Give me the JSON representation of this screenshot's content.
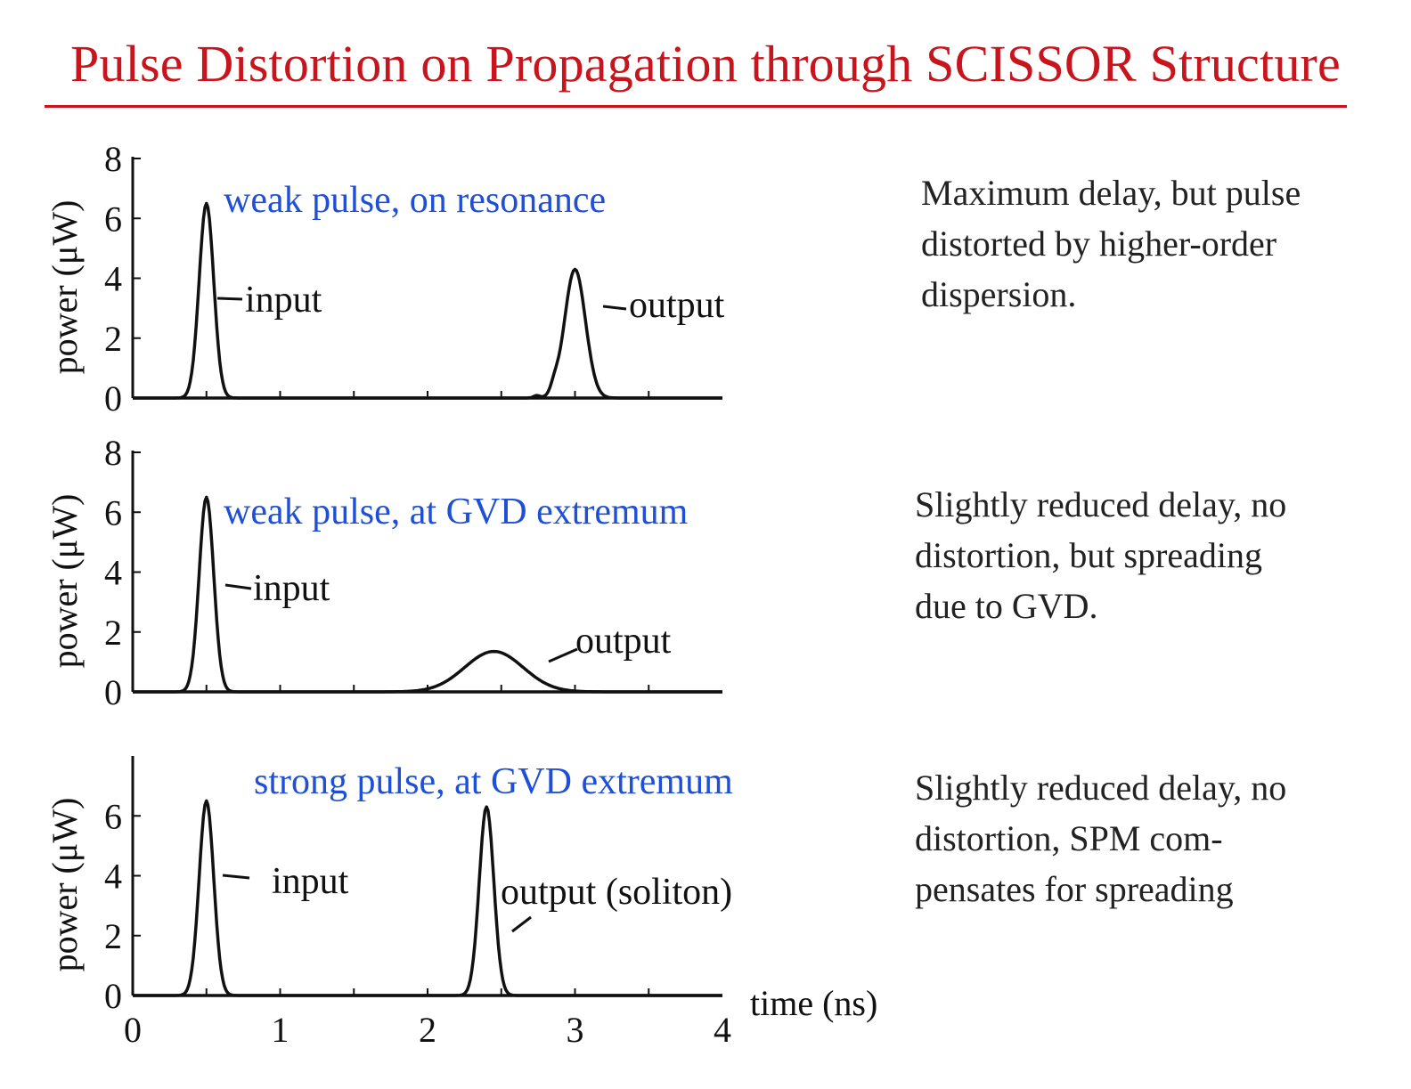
{
  "slide": {
    "title": "Pulse Distortion on Propagation through SCISSOR Structure",
    "title_color": "#c8141c"
  },
  "descriptions": [
    {
      "lines": [
        "Maximum delay, but pulse",
        "distorted by higher-order",
        "dispersion."
      ]
    },
    {
      "lines": [
        "Slightly reduced delay, no",
        "distortion, but spreading",
        "due to GVD."
      ]
    },
    {
      "lines": [
        "Slightly reduced delay, no",
        "distortion, SPM com-",
        "pensates for spreading"
      ]
    }
  ],
  "chart_data": [
    {
      "type": "line",
      "title": "weak pulse, on resonance",
      "title_color": "#1f4fd6",
      "ylabel": "power (μW)",
      "xlim": [
        0,
        4
      ],
      "ylim": [
        0,
        8
      ],
      "yticks": [
        0,
        2,
        4,
        6,
        8
      ],
      "ytick_labels": [
        "0",
        "2",
        "4",
        "6",
        "8"
      ],
      "series": [
        {
          "name": "input",
          "pulse": {
            "peak_time": 0.5,
            "peak_power": 6.5,
            "width": 0.07
          }
        },
        {
          "name": "output",
          "pulse": {
            "peak_time": 3.0,
            "peak_power": 4.3,
            "width": 0.1
          },
          "ripples": [
            {
              "time": 2.86,
              "power": 0.25,
              "width": 0.035
            },
            {
              "time": 2.74,
              "power": 0.08,
              "width": 0.03
            }
          ]
        }
      ]
    },
    {
      "type": "line",
      "title": "weak pulse, at GVD extremum",
      "title_color": "#1f4fd6",
      "ylabel": "power (μW)",
      "xlim": [
        0,
        4
      ],
      "ylim": [
        0,
        8
      ],
      "yticks": [
        0,
        2,
        4,
        6,
        8
      ],
      "ytick_labels": [
        "0",
        "2",
        "4",
        "6",
        "8"
      ],
      "series": [
        {
          "name": "input",
          "pulse": {
            "peak_time": 0.5,
            "peak_power": 6.5,
            "width": 0.07
          }
        },
        {
          "name": "output",
          "pulse": {
            "peak_time": 2.45,
            "peak_power": 1.35,
            "width": 0.28
          }
        }
      ]
    },
    {
      "type": "line",
      "title": "strong pulse, at GVD extremum",
      "title_color": "#1f4fd6",
      "ylabel": "power (μW)",
      "xlabel": "time (ns)",
      "xlim": [
        0,
        4
      ],
      "ylim": [
        0,
        8
      ],
      "yticks": [
        0,
        2,
        4,
        6
      ],
      "ytick_labels": [
        "0",
        "2",
        "4",
        "6"
      ],
      "xticks": [
        0,
        1,
        2,
        3,
        4
      ],
      "xtick_labels": [
        "0",
        "1",
        "2",
        "3",
        "4"
      ],
      "series": [
        {
          "name": "input",
          "pulse": {
            "peak_time": 0.5,
            "peak_power": 6.5,
            "width": 0.07
          }
        },
        {
          "name": "output (soliton)",
          "pulse": {
            "peak_time": 2.4,
            "peak_power": 6.3,
            "width": 0.07
          }
        }
      ]
    }
  ]
}
